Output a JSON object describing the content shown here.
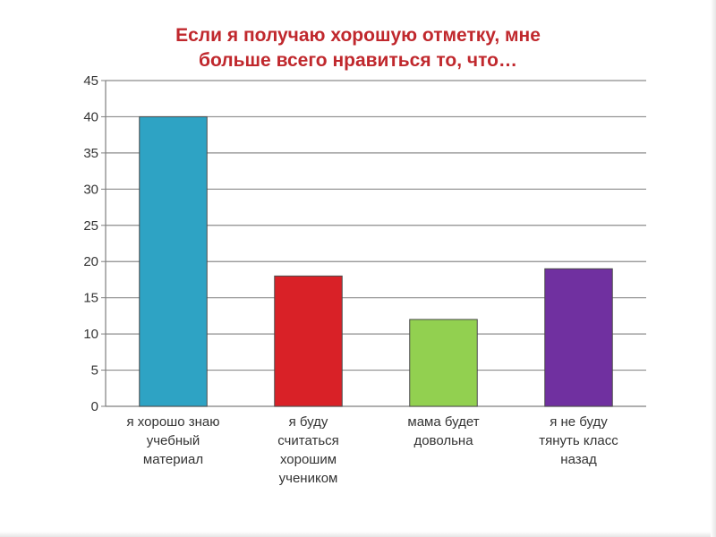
{
  "chart_data": {
    "type": "bar",
    "title_lines": [
      "Если я получаю хорошую отметку, мне",
      "больше всего нравиться то, что…"
    ],
    "xlabel": "",
    "ylabel": "",
    "ylim": [
      0,
      45
    ],
    "yticks": [
      0,
      5,
      10,
      15,
      20,
      25,
      30,
      35,
      40,
      45
    ],
    "grid": true,
    "legend": "none",
    "categories": [
      [
        "я хорошо знаю",
        "учебный",
        "материал"
      ],
      [
        "я буду",
        "считаться",
        "хорошим",
        "учеником"
      ],
      [
        "мама будет",
        "довольна"
      ],
      [
        "я не буду",
        "тянуть класс",
        "назад"
      ]
    ],
    "values": [
      40,
      18,
      12,
      19
    ],
    "colors": [
      "#2ea3c4",
      "#d92127",
      "#92d050",
      "#7030a0"
    ]
  }
}
